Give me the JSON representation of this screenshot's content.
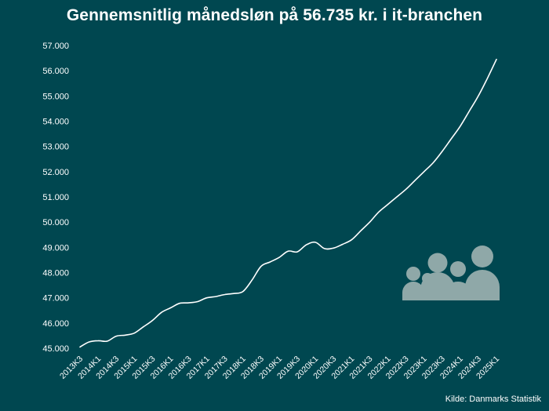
{
  "chart_data": {
    "type": "line",
    "title": "Gennemsnitlig månedsløn på 56.735 kr. i it-branchen",
    "source": "Kilde: Danmarks Statistik",
    "xlabel": "",
    "ylabel": "",
    "ylim": [
      45000,
      57000
    ],
    "yticks": [
      45000,
      46000,
      47000,
      48000,
      49000,
      50000,
      51000,
      52000,
      53000,
      54000,
      55000,
      56000,
      57000
    ],
    "ytick_labels": [
      "45.000",
      "46.000",
      "47.000",
      "48.000",
      "49.000",
      "50.000",
      "51.000",
      "52.000",
      "53.000",
      "54.000",
      "55.000",
      "56.000",
      "57.000"
    ],
    "grid": false,
    "line_color": "#ffffff",
    "icon_color": "#8fa8a8",
    "decoration": "people-group-icon",
    "x_labels_shown": [
      "2013K3",
      "2014K1",
      "2014K3",
      "2015K1",
      "2015K3",
      "2016K1",
      "2016K3",
      "2017K1",
      "2017K3",
      "2018K1",
      "2018K3",
      "2019K1",
      "2019K3",
      "2020K1",
      "2020K3",
      "2021K1",
      "2021K3",
      "2022K1",
      "2022K3",
      "2023K1",
      "2023K3",
      "2024K1",
      "2024K3",
      "2025K1"
    ],
    "series": [
      {
        "x": [
          "2013K3",
          "2013K4",
          "2014K1",
          "2014K2",
          "2014K3",
          "2014K4",
          "2015K1",
          "2015K2",
          "2015K3",
          "2015K4",
          "2016K1",
          "2016K2",
          "2016K3",
          "2016K4",
          "2017K1",
          "2017K2",
          "2017K3",
          "2017K4",
          "2018K1",
          "2018K2",
          "2018K3",
          "2018K4",
          "2019K1",
          "2019K2",
          "2019K3",
          "2019K4",
          "2020K1",
          "2020K2",
          "2020K3",
          "2020K4",
          "2021K1",
          "2021K2",
          "2021K3",
          "2021K4",
          "2022K1",
          "2022K2",
          "2022K3",
          "2022K4",
          "2023K1",
          "2023K2",
          "2023K3",
          "2023K4",
          "2024K1",
          "2024K2",
          "2024K3",
          "2024K4",
          "2025K1"
        ],
        "values": [
          45050,
          45250,
          45300,
          45280,
          45480,
          45520,
          45600,
          45850,
          46100,
          46420,
          46600,
          46780,
          46800,
          46850,
          47000,
          47050,
          47130,
          47170,
          47250,
          47700,
          48250,
          48420,
          48600,
          48850,
          48820,
          49100,
          49200,
          48950,
          48970,
          49120,
          49300,
          49650,
          50000,
          50400,
          50700,
          51000,
          51300,
          51650,
          52000,
          52350,
          52800,
          53300,
          53800,
          54400,
          55000,
          55700,
          56450
        ]
      }
    ]
  }
}
